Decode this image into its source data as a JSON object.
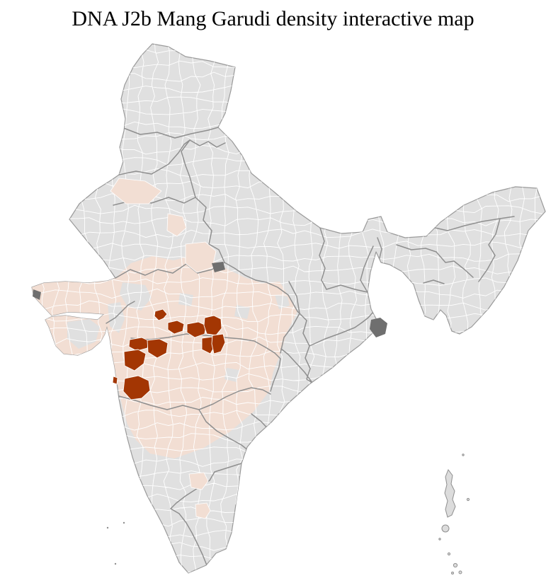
{
  "title": "DNA J2b Mang Garudi density interactive map",
  "map": {
    "country": "India",
    "unit": "district",
    "kind": "choropleth density map",
    "high_density_district_count": 11,
    "high_density_cluster_region": "west-central belt (Maharashtra / Madhya Pradesh border)",
    "islands_shown": "Andaman & Nicobar, Lakshadweep",
    "colors": {
      "background": "#ffffff",
      "district_default": "#e0e0e0",
      "district_low_density": "#f2ded3",
      "district_high_density": "#a33603",
      "district_border": "#ffffff",
      "state_border": "#8f8f8f",
      "coast_outline": "#9a9a9a",
      "terrain_patch": "#6f6f6f",
      "island": "#dcdcdc"
    }
  }
}
